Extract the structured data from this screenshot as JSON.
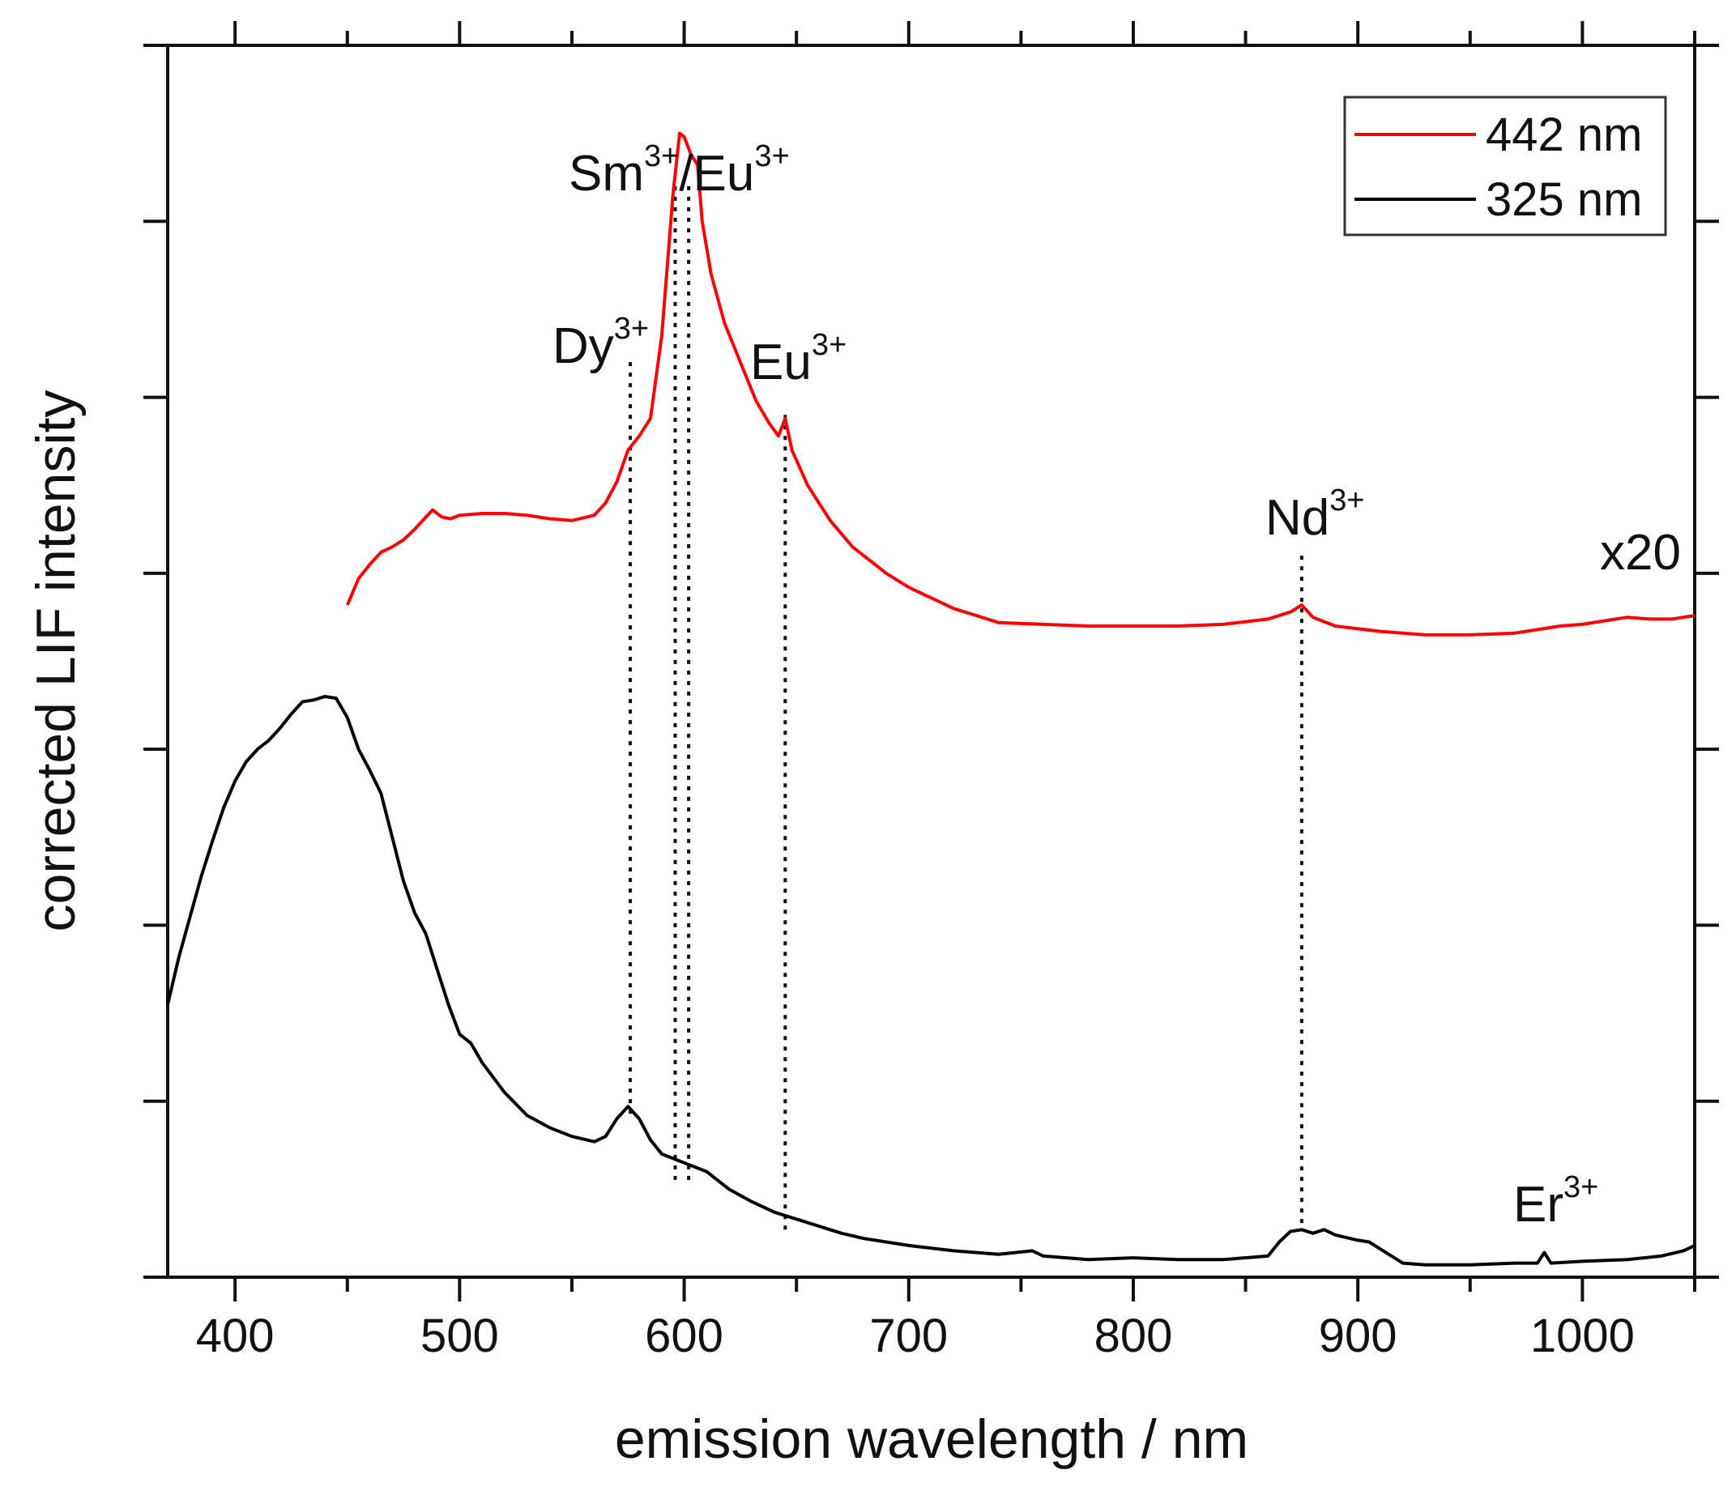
{
  "chart_data": {
    "type": "line",
    "title": "",
    "xlabel": "emission wavelength / nm",
    "ylabel": "corrected LIF intensity",
    "xlim": [
      370,
      1050
    ],
    "ylim": [
      0,
      7
    ],
    "x_ticks": [
      400,
      500,
      600,
      700,
      800,
      900,
      1000
    ],
    "y_tick_labels_shown": false,
    "grid": false,
    "legend_position": "top-right",
    "series": [
      {
        "name": "442 nm",
        "color": "#ff0000",
        "note": "x20",
        "points": [
          [
            450,
            3.82
          ],
          [
            455,
            3.97
          ],
          [
            460,
            4.05
          ],
          [
            465,
            4.12
          ],
          [
            470,
            4.15
          ],
          [
            475,
            4.19
          ],
          [
            480,
            4.25
          ],
          [
            485,
            4.32
          ],
          [
            488,
            4.36
          ],
          [
            492,
            4.32
          ],
          [
            496,
            4.31
          ],
          [
            500,
            4.33
          ],
          [
            510,
            4.34
          ],
          [
            520,
            4.34
          ],
          [
            530,
            4.33
          ],
          [
            540,
            4.31
          ],
          [
            550,
            4.3
          ],
          [
            560,
            4.33
          ],
          [
            565,
            4.4
          ],
          [
            570,
            4.52
          ],
          [
            575,
            4.7
          ],
          [
            580,
            4.78
          ],
          [
            585,
            4.88
          ],
          [
            590,
            5.35
          ],
          [
            595,
            6.15
          ],
          [
            598,
            6.5
          ],
          [
            600,
            6.48
          ],
          [
            603,
            6.38
          ],
          [
            606,
            6.32
          ],
          [
            608,
            6.0
          ],
          [
            612,
            5.7
          ],
          [
            618,
            5.42
          ],
          [
            625,
            5.2
          ],
          [
            632,
            4.98
          ],
          [
            638,
            4.85
          ],
          [
            642,
            4.78
          ],
          [
            645,
            4.88
          ],
          [
            648,
            4.7
          ],
          [
            655,
            4.5
          ],
          [
            665,
            4.3
          ],
          [
            675,
            4.15
          ],
          [
            690,
            4.0
          ],
          [
            700,
            3.92
          ],
          [
            720,
            3.8
          ],
          [
            740,
            3.72
          ],
          [
            760,
            3.71
          ],
          [
            780,
            3.7
          ],
          [
            800,
            3.7
          ],
          [
            820,
            3.7
          ],
          [
            840,
            3.71
          ],
          [
            860,
            3.74
          ],
          [
            870,
            3.78
          ],
          [
            875,
            3.82
          ],
          [
            880,
            3.75
          ],
          [
            890,
            3.7
          ],
          [
            910,
            3.67
          ],
          [
            930,
            3.65
          ],
          [
            950,
            3.65
          ],
          [
            970,
            3.66
          ],
          [
            980,
            3.68
          ],
          [
            990,
            3.7
          ],
          [
            1000,
            3.71
          ],
          [
            1010,
            3.73
          ],
          [
            1020,
            3.75
          ],
          [
            1030,
            3.74
          ],
          [
            1040,
            3.74
          ],
          [
            1050,
            3.76
          ]
        ]
      },
      {
        "name": "325 nm",
        "color": "#000000",
        "points": [
          [
            370,
            1.55
          ],
          [
            375,
            1.82
          ],
          [
            380,
            2.05
          ],
          [
            385,
            2.28
          ],
          [
            390,
            2.48
          ],
          [
            395,
            2.67
          ],
          [
            400,
            2.82
          ],
          [
            405,
            2.93
          ],
          [
            410,
            3.0
          ],
          [
            415,
            3.05
          ],
          [
            420,
            3.12
          ],
          [
            425,
            3.2
          ],
          [
            430,
            3.27
          ],
          [
            435,
            3.28
          ],
          [
            440,
            3.3
          ],
          [
            445,
            3.29
          ],
          [
            450,
            3.18
          ],
          [
            455,
            3.0
          ],
          [
            460,
            2.88
          ],
          [
            465,
            2.75
          ],
          [
            470,
            2.5
          ],
          [
            475,
            2.25
          ],
          [
            480,
            2.07
          ],
          [
            485,
            1.95
          ],
          [
            490,
            1.75
          ],
          [
            495,
            1.55
          ],
          [
            500,
            1.38
          ],
          [
            505,
            1.33
          ],
          [
            510,
            1.22
          ],
          [
            520,
            1.05
          ],
          [
            530,
            0.92
          ],
          [
            540,
            0.85
          ],
          [
            550,
            0.8
          ],
          [
            560,
            0.77
          ],
          [
            565,
            0.8
          ],
          [
            570,
            0.9
          ],
          [
            575,
            0.97
          ],
          [
            580,
            0.9
          ],
          [
            585,
            0.78
          ],
          [
            590,
            0.7
          ],
          [
            600,
            0.65
          ],
          [
            610,
            0.6
          ],
          [
            620,
            0.5
          ],
          [
            630,
            0.43
          ],
          [
            640,
            0.37
          ],
          [
            650,
            0.33
          ],
          [
            660,
            0.29
          ],
          [
            670,
            0.25
          ],
          [
            680,
            0.22
          ],
          [
            700,
            0.18
          ],
          [
            720,
            0.15
          ],
          [
            740,
            0.13
          ],
          [
            755,
            0.15
          ],
          [
            760,
            0.12
          ],
          [
            780,
            0.1
          ],
          [
            800,
            0.11
          ],
          [
            820,
            0.1
          ],
          [
            840,
            0.1
          ],
          [
            860,
            0.12
          ],
          [
            865,
            0.2
          ],
          [
            870,
            0.26
          ],
          [
            875,
            0.27
          ],
          [
            880,
            0.25
          ],
          [
            885,
            0.27
          ],
          [
            890,
            0.24
          ],
          [
            900,
            0.21
          ],
          [
            905,
            0.2
          ],
          [
            910,
            0.16
          ],
          [
            920,
            0.08
          ],
          [
            930,
            0.07
          ],
          [
            950,
            0.07
          ],
          [
            970,
            0.08
          ],
          [
            980,
            0.08
          ],
          [
            983,
            0.14
          ],
          [
            986,
            0.08
          ],
          [
            1000,
            0.09
          ],
          [
            1020,
            0.1
          ],
          [
            1035,
            0.12
          ],
          [
            1045,
            0.15
          ],
          [
            1050,
            0.18
          ]
        ]
      }
    ],
    "annotations": [
      {
        "name": "dy",
        "base": "Dy",
        "sup": "3+",
        "x": 576,
        "line_top_y": 5.2,
        "line_bottom_y": 0.9
      },
      {
        "name": "sm",
        "base": "Sm",
        "sup": "3+",
        "x": 596,
        "line_top_y": 6.2,
        "line_bottom_y": 0.55
      },
      {
        "name": "eu-a",
        "base": "/Eu",
        "sup": "3+",
        "x": 602,
        "line_top_y": 6.2,
        "line_bottom_y": 0.55
      },
      {
        "name": "eu-b",
        "base": "Eu",
        "sup": "3+",
        "x": 645,
        "line_top_y": 4.9,
        "line_bottom_y": 0.25
      },
      {
        "name": "nd",
        "base": "Nd",
        "sup": "3+",
        "x": 875,
        "line_top_y": 4.1,
        "line_bottom_y": 0.3
      },
      {
        "name": "er",
        "base": "Er",
        "sup": "3+",
        "x": null
      }
    ],
    "multiplier_label": "x20"
  }
}
